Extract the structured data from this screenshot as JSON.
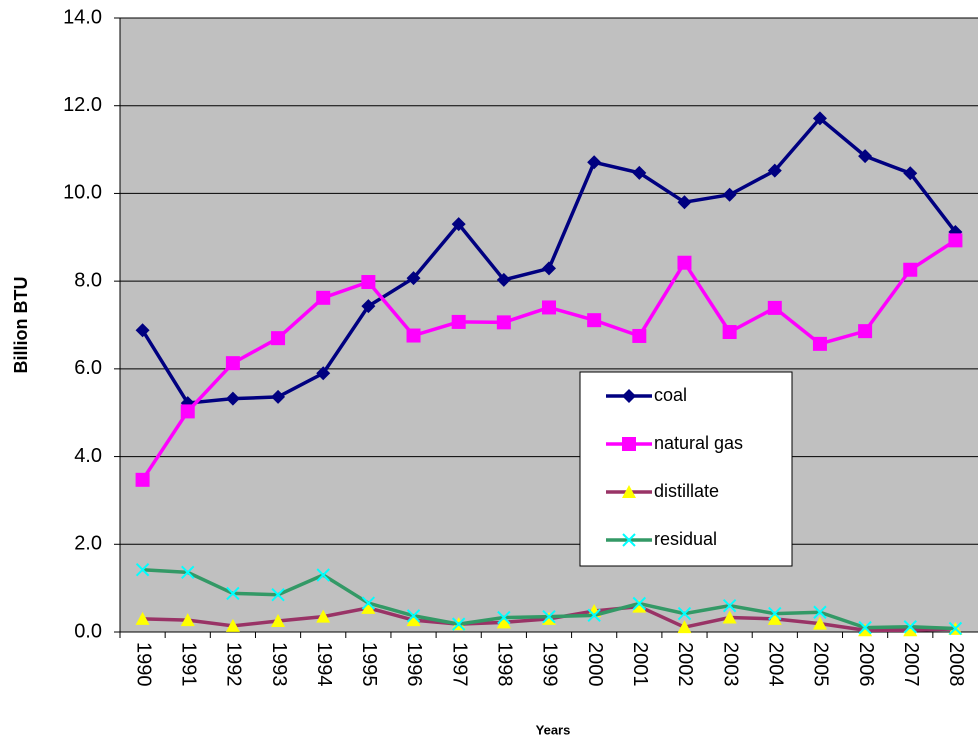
{
  "chart_data": {
    "type": "line",
    "x_label": "Years",
    "y_label": "Billion BTU",
    "categories": [
      "1990",
      "1991",
      "1992",
      "1993",
      "1994",
      "1995",
      "1996",
      "1997",
      "1998",
      "1999",
      "2000",
      "2001",
      "2002",
      "2003",
      "2004",
      "2005",
      "2006",
      "2007",
      "2008"
    ],
    "series": [
      {
        "name": "coal",
        "color": "#000080",
        "marker": "diamond",
        "marker_color": "#000080",
        "values": [
          6.88,
          5.22,
          5.32,
          5.36,
          5.9,
          7.43,
          8.07,
          9.3,
          8.03,
          8.29,
          10.71,
          10.47,
          9.8,
          9.97,
          10.52,
          11.71,
          10.85,
          10.46,
          9.12
        ]
      },
      {
        "name": "natural gas",
        "color": "#ff00ff",
        "marker": "square",
        "marker_color": "#ff00ff",
        "values": [
          3.47,
          5.03,
          6.13,
          6.7,
          7.62,
          7.98,
          6.76,
          7.07,
          7.06,
          7.4,
          7.11,
          6.75,
          8.42,
          6.84,
          7.39,
          6.57,
          6.86,
          8.26,
          8.93
        ]
      },
      {
        "name": "distillate",
        "color": "#993366",
        "marker": "triangle",
        "marker_color": "#ffff00",
        "values": [
          0.3,
          0.27,
          0.14,
          0.25,
          0.35,
          0.55,
          0.27,
          0.18,
          0.22,
          0.3,
          0.48,
          0.58,
          0.11,
          0.33,
          0.3,
          0.19,
          0.04,
          0.04,
          0.07
        ]
      },
      {
        "name": "residual",
        "color": "#339966",
        "marker": "x",
        "marker_color": "#00ffff",
        "values": [
          1.42,
          1.36,
          0.88,
          0.85,
          1.3,
          0.66,
          0.37,
          0.18,
          0.33,
          0.35,
          0.38,
          0.65,
          0.42,
          0.6,
          0.42,
          0.45,
          0.1,
          0.12,
          0.08
        ]
      }
    ],
    "ylim": [
      0,
      14
    ],
    "yticks": [
      {
        "value": 0,
        "label": "0.0"
      },
      {
        "value": 2,
        "label": "2.0"
      },
      {
        "value": 4,
        "label": "4.0"
      },
      {
        "value": 6,
        "label": "6.0"
      },
      {
        "value": 8,
        "label": "8.0"
      },
      {
        "value": 10,
        "label": "10.0"
      },
      {
        "value": 12,
        "label": "12.0"
      },
      {
        "value": 14,
        "label": "14.0"
      }
    ],
    "grid": true,
    "plot_background": "#c0c0c0"
  }
}
